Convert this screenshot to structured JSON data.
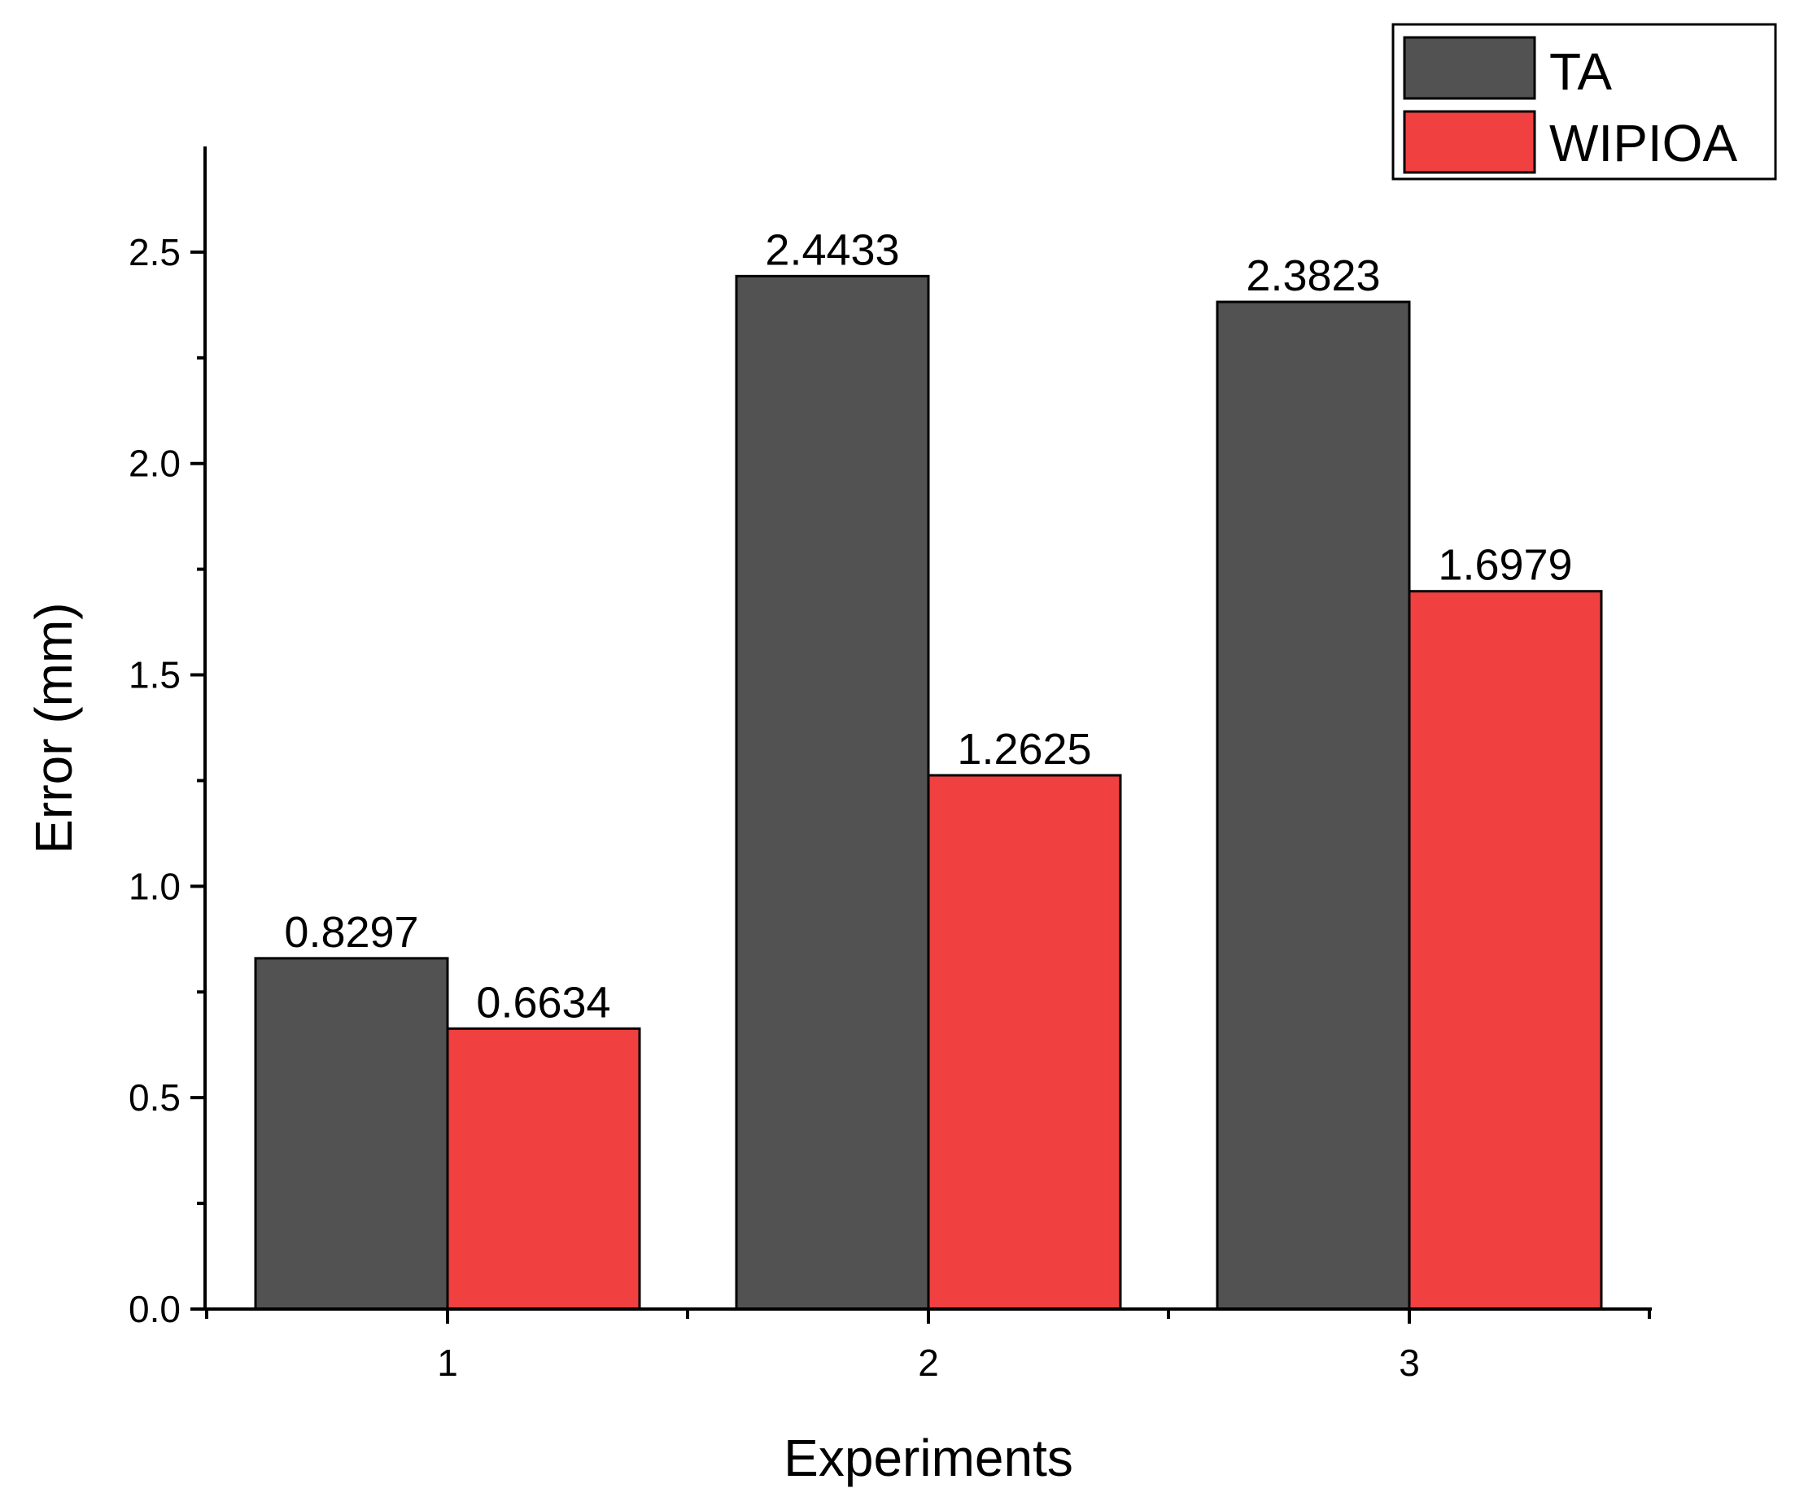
{
  "chart_data": {
    "type": "bar",
    "title": "",
    "xlabel": "Experiments",
    "ylabel": "Error (mm)",
    "categories": [
      "1",
      "2",
      "3"
    ],
    "ylim": [
      0,
      2.75
    ],
    "y_ticks": [
      "0.0",
      "0.5",
      "1.0",
      "1.5",
      "2.0",
      "2.5"
    ],
    "grid": false,
    "legend_position": "top-right",
    "series": [
      {
        "name": "TA",
        "color": "#525252",
        "values": [
          0.8297,
          2.4433,
          2.3823
        ],
        "labels": [
          "0.8297",
          "2.4433",
          "2.3823"
        ]
      },
      {
        "name": "WIPIOA",
        "color": "#f04040",
        "values": [
          0.6634,
          1.2625,
          1.6979
        ],
        "labels": [
          "0.6634",
          "1.2625",
          "1.6979"
        ]
      }
    ]
  }
}
